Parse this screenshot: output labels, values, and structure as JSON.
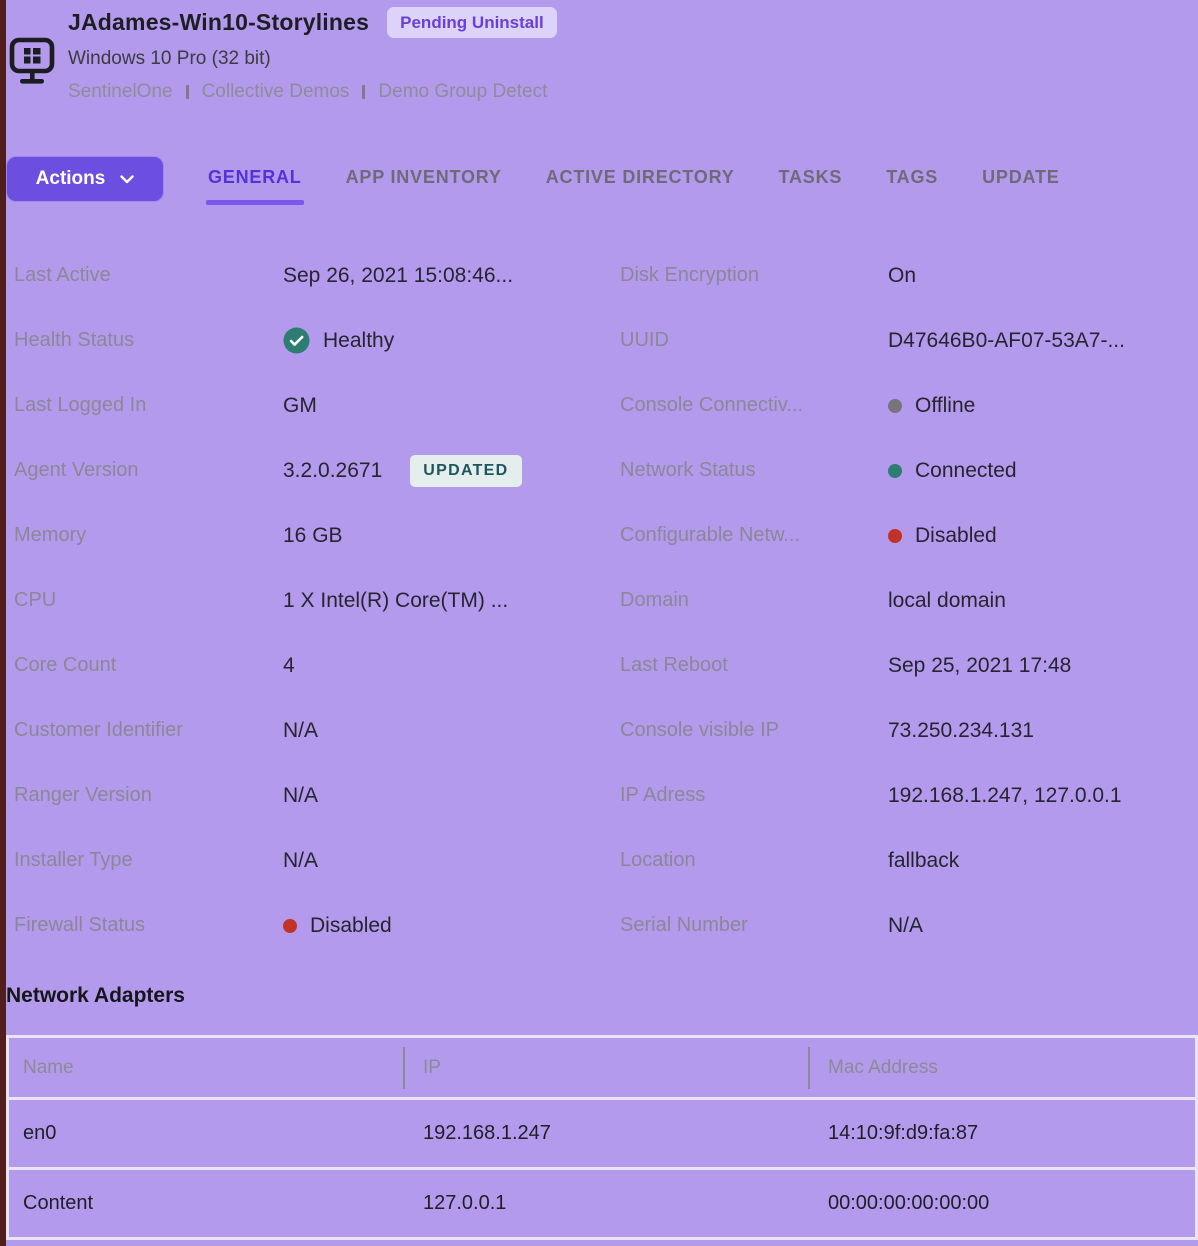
{
  "page": {
    "title": "JAdames-Win10-Storylines",
    "status_badge": "Pending Uninstall",
    "os": "Windows 10 Pro (32 bit)",
    "breadcrumb": [
      "SentinelOne",
      "Collective Demos",
      "Demo Group Detect"
    ]
  },
  "toolbar": {
    "actions_label": "Actions",
    "tabs": [
      {
        "label": "GENERAL",
        "active": true
      },
      {
        "label": "APP INVENTORY",
        "active": false
      },
      {
        "label": "ACTIVE DIRECTORY",
        "active": false
      },
      {
        "label": "TASKS",
        "active": false
      },
      {
        "label": "TAGS",
        "active": false
      },
      {
        "label": "UPDATE",
        "active": false
      }
    ]
  },
  "details": {
    "left": [
      {
        "label": "Last Active",
        "value": "Sep 26, 2021 15:08:46..."
      },
      {
        "label": "Health Status",
        "value": "Healthy",
        "indicator": "check",
        "indicator_color": "#2E7D72"
      },
      {
        "label": "Last Logged In",
        "value": "GM"
      },
      {
        "label": "Agent Version",
        "value": "3.2.0.2671",
        "badge": "UPDATED"
      },
      {
        "label": "Memory",
        "value": "16 GB"
      },
      {
        "label": "CPU",
        "value": "1 X Intel(R) Core(TM) ..."
      },
      {
        "label": "Core Count",
        "value": "4"
      },
      {
        "label": "Customer Identifier",
        "value": "N/A"
      },
      {
        "label": "Ranger Version",
        "value": "N/A"
      },
      {
        "label": "Installer Type",
        "value": "N/A"
      },
      {
        "label": "Firewall Status",
        "value": "Disabled",
        "indicator": "dot",
        "indicator_color": "#C13227"
      }
    ],
    "right": [
      {
        "label": "Disk Encryption",
        "value": "On"
      },
      {
        "label": "UUID",
        "value": "D47646B0-AF07-53A7-..."
      },
      {
        "label": "Console Connectiv...",
        "value": "Offline",
        "indicator": "dot",
        "indicator_color": "#77757B"
      },
      {
        "label": "Network Status",
        "value": "Connected",
        "indicator": "dot",
        "indicator_color": "#2E7D72"
      },
      {
        "label": "Configurable Netw...",
        "value": "Disabled",
        "indicator": "dot",
        "indicator_color": "#C13227"
      },
      {
        "label": "Domain",
        "value": "local domain"
      },
      {
        "label": "Last Reboot",
        "value": "Sep 25, 2021 17:48"
      },
      {
        "label": "Console visible IP",
        "value": "73.250.234.131"
      },
      {
        "label": "IP Adress",
        "value": "192.168.1.247, 127.0.0.1"
      },
      {
        "label": "Location",
        "value": "fallback"
      },
      {
        "label": "Serial Number",
        "value": "N/A"
      }
    ]
  },
  "network_adapters": {
    "heading": "Network Adapters",
    "columns": [
      "Name",
      "IP",
      "Mac Address"
    ],
    "rows": [
      [
        "en0",
        "192.168.1.247",
        "14:10:9f:d9:fa:87"
      ],
      [
        "Content",
        "127.0.0.1",
        "00:00:00:00:00:00"
      ]
    ]
  },
  "icons": {
    "device": "windows-monitor-icon",
    "actions_chevron": "chevron-down-icon",
    "healthy": "check-circle-icon",
    "status": "status-dot-icon"
  },
  "colors": {
    "page_background": "#B49AEC",
    "edge_strip": "#521D1D",
    "accent_purple": "#6C4EE0",
    "active_tab": "#5433D6",
    "pending_badge_bg": "#DDD3F8",
    "pending_badge_text": "#6A3FD9",
    "updated_badge_bg": "#E4EEEC",
    "updated_badge_text": "#1D565C",
    "healthy_teal": "#2E7D72",
    "disabled_red": "#C13227",
    "offline_gray": "#77757B",
    "table_border": "#EAE5F6"
  }
}
